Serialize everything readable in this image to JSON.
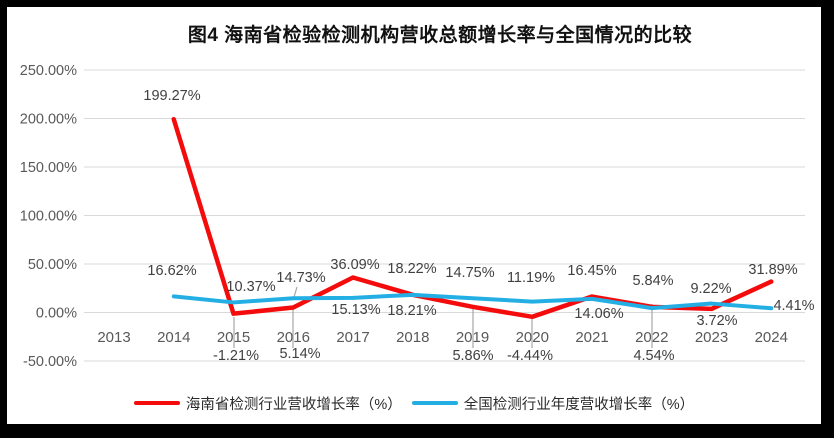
{
  "window": {
    "frame_color": "#000000",
    "card_color": "#ffffff"
  },
  "title": "图4 海南省检验检测机构营收总额增长率与全国情况的比较",
  "chart_data": {
    "type": "line",
    "title": "图4 海南省检验检测机构营收总额增长率与全国情况的比较",
    "categories": [
      "2013",
      "2014",
      "2015",
      "2016",
      "2017",
      "2018",
      "2019",
      "2020",
      "2021",
      "2022",
      "2023",
      "2024"
    ],
    "series": [
      {
        "name": "海南省检测行业营收增长率（%）",
        "color": "#f40b0b",
        "values": [
          null,
          199.27,
          -1.21,
          5.14,
          36.09,
          18.22,
          5.86,
          -4.44,
          16.45,
          5.84,
          3.72,
          31.89
        ]
      },
      {
        "name": "全国检测行业年度营收增长率（%）",
        "color": "#24afe4",
        "values": [
          null,
          16.62,
          10.37,
          14.73,
          15.13,
          18.21,
          14.75,
          11.19,
          14.06,
          4.54,
          9.22,
          4.41
        ]
      }
    ],
    "y_ticks": [
      {
        "value": 250,
        "label": "250.00%"
      },
      {
        "value": 200,
        "label": "200.00%"
      },
      {
        "value": 150,
        "label": "150.00%"
      },
      {
        "value": 100,
        "label": "100.00%"
      },
      {
        "value": 50,
        "label": "50.00%"
      },
      {
        "value": 0,
        "label": "0.00%"
      },
      {
        "value": -50,
        "label": "-50.00%"
      }
    ],
    "ylim": [
      -50,
      250
    ],
    "grid": true,
    "data_labels": true,
    "legend_position": "bottom",
    "colors": {
      "grid": "#d9d9d9",
      "axis_text": "#595959",
      "data_label_text": "#404040",
      "leader_line": "#a6a6a6"
    }
  }
}
